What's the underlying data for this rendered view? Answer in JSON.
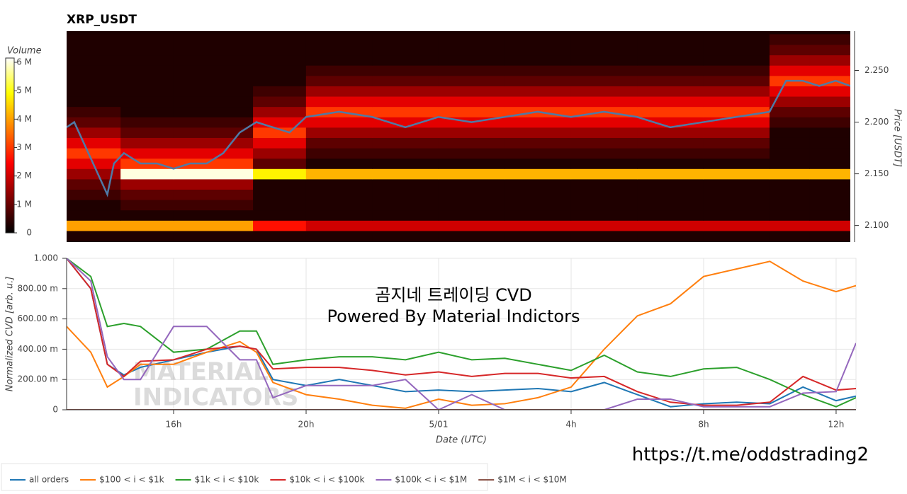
{
  "chart_data": [
    {
      "type": "heatmap",
      "title": "XRP_USDT",
      "y_label": "Price [USDT]",
      "xlim": [
        12.77,
        36.44
      ],
      "ylim": [
        2.084,
        2.288
      ],
      "yticks": [
        {
          "value": 2.1,
          "label": "2.100"
        },
        {
          "value": 2.15,
          "label": "2.150"
        },
        {
          "value": 2.2,
          "label": "2.200"
        },
        {
          "value": 2.25,
          "label": "2.250"
        }
      ],
      "x_bins": [
        12.77,
        14.4,
        16,
        18.4,
        20,
        22,
        24,
        26,
        28,
        30,
        32,
        34,
        35.2,
        36.44
      ],
      "y_bins": [
        2.085,
        2.095,
        2.105,
        2.115,
        2.125,
        2.135,
        2.145,
        2.155,
        2.165,
        2.175,
        2.185,
        2.195,
        2.205,
        2.215,
        2.225,
        2.235,
        2.245,
        2.255,
        2.265,
        2.275,
        2.285
      ],
      "z": [
        [
          300000,
          300000,
          300000,
          300000,
          300000,
          300000,
          300000,
          300000,
          300000,
          300000,
          300000,
          300000,
          300000
        ],
        [
          4000000,
          4000000,
          4000000,
          2600000,
          2000000,
          2000000,
          2000000,
          2000000,
          2000000,
          2000000,
          2000000,
          2000000,
          2000000
        ],
        [
          300000,
          300000,
          300000,
          300000,
          300000,
          300000,
          300000,
          300000,
          300000,
          300000,
          300000,
          300000,
          300000
        ],
        [
          300000,
          600000,
          600000,
          300000,
          300000,
          300000,
          300000,
          300000,
          300000,
          300000,
          300000,
          300000,
          300000
        ],
        [
          600000,
          900000,
          900000,
          300000,
          300000,
          300000,
          300000,
          300000,
          300000,
          300000,
          300000,
          300000,
          300000
        ],
        [
          900000,
          1500000,
          1500000,
          300000,
          300000,
          300000,
          300000,
          300000,
          300000,
          300000,
          300000,
          300000,
          300000
        ],
        [
          1500000,
          6000000,
          6000000,
          4800000,
          4200000,
          4200000,
          4200000,
          4200000,
          4200000,
          4200000,
          4200000,
          4200000,
          4200000
        ],
        [
          2200000,
          3000000,
          3000000,
          900000,
          300000,
          300000,
          300000,
          300000,
          300000,
          300000,
          300000,
          300000,
          300000
        ],
        [
          3000000,
          2200000,
          2200000,
          1500000,
          600000,
          600000,
          600000,
          600000,
          600000,
          600000,
          600000,
          300000,
          300000
        ],
        [
          2200000,
          1500000,
          1500000,
          2200000,
          900000,
          900000,
          900000,
          900000,
          900000,
          900000,
          900000,
          300000,
          300000
        ],
        [
          1500000,
          900000,
          900000,
          3000000,
          1500000,
          1500000,
          1500000,
          1500000,
          1500000,
          1500000,
          1500000,
          300000,
          300000
        ],
        [
          900000,
          600000,
          600000,
          2200000,
          2200000,
          2200000,
          2200000,
          2200000,
          2200000,
          2200000,
          2200000,
          600000,
          600000
        ],
        [
          600000,
          300000,
          300000,
          1500000,
          3000000,
          3000000,
          3000000,
          3000000,
          3000000,
          3000000,
          3000000,
          900000,
          900000
        ],
        [
          300000,
          300000,
          300000,
          900000,
          2200000,
          2200000,
          2200000,
          2200000,
          2200000,
          2200000,
          2200000,
          1500000,
          1500000
        ],
        [
          300000,
          300000,
          300000,
          600000,
          1500000,
          1500000,
          1500000,
          1500000,
          1500000,
          1500000,
          1500000,
          2200000,
          2200000
        ],
        [
          300000,
          300000,
          300000,
          300000,
          900000,
          900000,
          900000,
          900000,
          900000,
          900000,
          900000,
          3000000,
          3000000
        ],
        [
          300000,
          300000,
          300000,
          300000,
          600000,
          600000,
          600000,
          600000,
          600000,
          600000,
          600000,
          2200000,
          2200000
        ],
        [
          300000,
          300000,
          300000,
          300000,
          300000,
          300000,
          300000,
          300000,
          300000,
          300000,
          300000,
          1500000,
          1500000
        ],
        [
          300000,
          300000,
          300000,
          300000,
          300000,
          300000,
          300000,
          300000,
          300000,
          300000,
          300000,
          900000,
          900000
        ],
        [
          300000,
          300000,
          300000,
          300000,
          300000,
          300000,
          300000,
          300000,
          300000,
          300000,
          300000,
          600000,
          600000
        ]
      ],
      "colorbar": {
        "label": "Volume",
        "lim": [
          0,
          6150000
        ],
        "ticks": [
          0,
          {
            "value": 1000000,
            "label": "1 M"
          },
          {
            "value": 2000000,
            "label": "2 M"
          },
          {
            "value": 3000000,
            "label": "3 M"
          },
          {
            "value": 4000000,
            "label": "4 M"
          },
          {
            "value": 5000000,
            "label": "5 M"
          },
          {
            "value": 6000000,
            "label": "6 M"
          }
        ]
      },
      "price_line": {
        "color": "#4f7aa6",
        "x": [
          12.77,
          13,
          13.5,
          14,
          14.2,
          14.5,
          15,
          15.5,
          16,
          16.5,
          17,
          17.5,
          18,
          18.5,
          19,
          19.5,
          20,
          21,
          22,
          23,
          24,
          25,
          26,
          27,
          28,
          29,
          30,
          31,
          32,
          33,
          34,
          34.5,
          35,
          35.5,
          36,
          36.44
        ],
        "values": [
          2.195,
          2.2,
          2.165,
          2.13,
          2.16,
          2.17,
          2.16,
          2.16,
          2.155,
          2.16,
          2.16,
          2.17,
          2.19,
          2.2,
          2.195,
          2.19,
          2.205,
          2.21,
          2.205,
          2.195,
          2.205,
          2.2,
          2.205,
          2.21,
          2.205,
          2.21,
          2.205,
          2.195,
          2.2,
          2.205,
          2.21,
          2.24,
          2.24,
          2.235,
          2.24,
          2.235
        ]
      }
    },
    {
      "type": "line",
      "x_label": "Date (UTC)",
      "y_label": "Normalized CVD [arb. u.]",
      "annotations": [
        "곰지네 트레이딩 CVD",
        "Powered By Material Indictors"
      ],
      "xlim": [
        12.77,
        36.6
      ],
      "ylim": [
        0,
        1
      ],
      "xticks": [
        {
          "value": 16,
          "label": "16h"
        },
        {
          "value": 20,
          "label": "20h"
        },
        {
          "value": 24,
          "label": "5/01"
        },
        {
          "value": 28,
          "label": "4h"
        },
        {
          "value": 32,
          "label": "8h"
        },
        {
          "value": 36,
          "label": "12h"
        }
      ],
      "yticks": [
        0,
        {
          "value": 0.2,
          "label": "200.00 m"
        },
        {
          "value": 0.4,
          "label": "400.00 m"
        },
        {
          "value": 0.6,
          "label": "600.00 m"
        },
        {
          "value": 0.8,
          "label": "800.00 m"
        },
        {
          "value": 1,
          "label": "1.000"
        }
      ],
      "grid": true,
      "x": [
        12.77,
        13.5,
        14,
        14.5,
        15,
        16,
        17,
        18,
        18.5,
        19,
        20,
        21,
        22,
        23,
        24,
        25,
        26,
        27,
        28,
        29,
        30,
        31,
        32,
        33,
        34,
        35,
        36,
        36.6
      ],
      "series": [
        {
          "name": "all orders",
          "color": "#1f77b4",
          "values": [
            1.0,
            0.8,
            0.3,
            0.23,
            0.28,
            0.33,
            0.38,
            0.42,
            0.4,
            0.2,
            0.16,
            0.2,
            0.16,
            0.12,
            0.13,
            0.12,
            0.13,
            0.14,
            0.12,
            0.18,
            0.1,
            0.02,
            0.04,
            0.05,
            0.04,
            0.15,
            0.06,
            0.09
          ]
        },
        {
          "name": "$100 < i < $1k",
          "color": "#ff7f0e",
          "values": [
            0.55,
            0.38,
            0.15,
            0.22,
            0.3,
            0.3,
            0.38,
            0.45,
            0.38,
            0.18,
            0.1,
            0.07,
            0.03,
            0.01,
            0.07,
            0.03,
            0.04,
            0.08,
            0.15,
            0.4,
            0.62,
            0.7,
            0.88,
            0.93,
            0.98,
            0.85,
            0.78,
            0.82
          ]
        },
        {
          "name": "$1k < i < $10k",
          "color": "#2ca02c",
          "values": [
            1.0,
            0.88,
            0.55,
            0.57,
            0.55,
            0.38,
            0.4,
            0.52,
            0.52,
            0.3,
            0.33,
            0.35,
            0.35,
            0.33,
            0.38,
            0.33,
            0.34,
            0.3,
            0.26,
            0.36,
            0.25,
            0.22,
            0.27,
            0.28,
            0.2,
            0.1,
            0.02,
            0.08
          ]
        },
        {
          "name": "$10k < i < $100k",
          "color": "#d62728",
          "values": [
            1.0,
            0.8,
            0.3,
            0.22,
            0.32,
            0.33,
            0.4,
            0.42,
            0.4,
            0.27,
            0.28,
            0.28,
            0.26,
            0.23,
            0.25,
            0.22,
            0.24,
            0.24,
            0.21,
            0.22,
            0.12,
            0.05,
            0.03,
            0.03,
            0.05,
            0.22,
            0.13,
            0.14
          ]
        },
        {
          "name": "$100k < i < $1M",
          "color": "#9467bd",
          "values": [
            1.0,
            0.85,
            0.35,
            0.2,
            0.2,
            0.55,
            0.55,
            0.33,
            0.33,
            0.08,
            0.16,
            0.16,
            0.16,
            0.2,
            0.0,
            0.1,
            0.0,
            0.0,
            0.0,
            0.0,
            0.07,
            0.07,
            0.02,
            0.02,
            0.02,
            0.11,
            0.12,
            0.44
          ]
        },
        {
          "name": "$1M < i < $10M",
          "color": "#8c564b",
          "values": [
            0,
            0,
            0,
            0,
            0,
            0,
            0,
            0,
            0,
            0,
            0,
            0,
            0,
            0,
            0,
            0,
            0,
            0,
            0,
            0,
            0,
            0,
            0,
            0,
            0,
            0,
            0,
            0
          ]
        }
      ]
    }
  ],
  "watermark": [
    "MATERIAL",
    "INDICATORS"
  ],
  "footer_link": "https://t.me/oddstrading2"
}
